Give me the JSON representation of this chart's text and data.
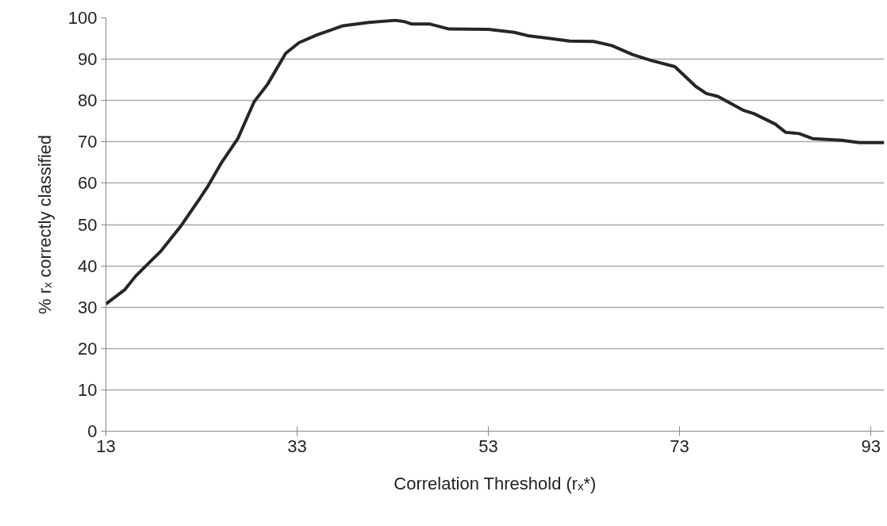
{
  "chart_data": {
    "type": "line",
    "xlabel": "Correlation Threshold (rₓ*)",
    "ylabel": "% rₓ correctly classified",
    "xlim": [
      13,
      94.4
    ],
    "xticks": [
      13,
      33,
      53,
      73,
      93
    ],
    "ylim": [
      0,
      100
    ],
    "yticks": [
      0,
      10,
      20,
      30,
      40,
      50,
      60,
      70,
      80,
      90,
      100
    ],
    "grid": "y",
    "marker": "none",
    "line_style": "solid",
    "series": [
      {
        "color": "#262626",
        "x": [
          13,
          15,
          16.1,
          18.8,
          20.8,
          22.7,
          23.7,
          25.1,
          26.8,
          28.5,
          29.9,
          31.8,
          33.2,
          35.1,
          36.7,
          37.8,
          40.5,
          43.3,
          44.2,
          45,
          46.9,
          48.9,
          53,
          55.7,
          57.1,
          58.8,
          61.5,
          64,
          65.9,
          68.1,
          70,
          72.5,
          74.7,
          75.8,
          77,
          79.7,
          80.8,
          83,
          84.1,
          85.5,
          86.9,
          89.9,
          91.8,
          94.4
        ],
        "values": [
          30.8,
          34.3,
          37.5,
          43.7,
          49.5,
          55.9,
          59.4,
          65,
          70.8,
          79.7,
          83.9,
          91.4,
          94,
          95.9,
          97.2,
          98.1,
          98.9,
          99.4,
          99.1,
          98.5,
          98.5,
          97.3,
          97.2,
          96.5,
          95.7,
          95.2,
          94.4,
          94.3,
          93.3,
          91.1,
          89.7,
          88.2,
          83.4,
          81.7,
          81,
          77.6,
          76.8,
          74.3,
          72.3,
          72,
          70.8,
          70.4,
          69.8,
          69.8
        ]
      }
    ]
  }
}
